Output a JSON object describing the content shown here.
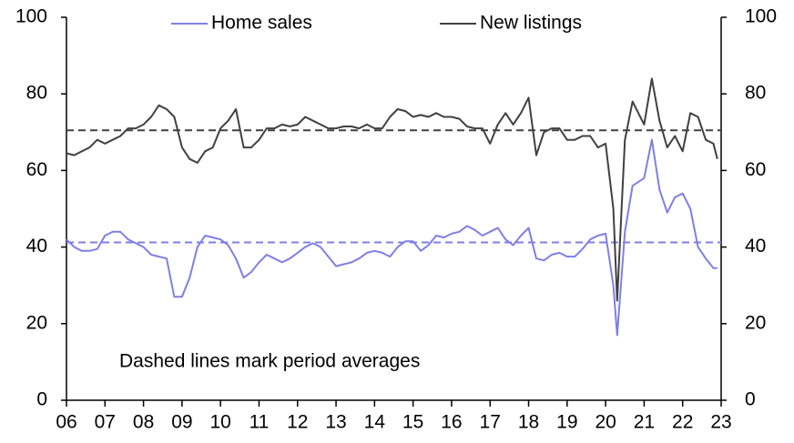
{
  "chart_data": {
    "type": "line",
    "legend": "top",
    "annotation": "Dashed lines mark period averages",
    "x": [
      2006.0,
      2006.2,
      2006.4,
      2006.6,
      2006.8,
      2007.0,
      2007.2,
      2007.4,
      2007.6,
      2007.8,
      2008.0,
      2008.2,
      2008.4,
      2008.6,
      2008.8,
      2009.0,
      2009.2,
      2009.4,
      2009.6,
      2009.8,
      2010.0,
      2010.2,
      2010.4,
      2010.6,
      2010.8,
      2011.0,
      2011.2,
      2011.4,
      2011.6,
      2011.8,
      2012.0,
      2012.2,
      2012.4,
      2012.6,
      2012.8,
      2013.0,
      2013.2,
      2013.4,
      2013.6,
      2013.8,
      2014.0,
      2014.2,
      2014.4,
      2014.6,
      2014.8,
      2015.0,
      2015.2,
      2015.4,
      2015.6,
      2015.8,
      2016.0,
      2016.2,
      2016.4,
      2016.6,
      2016.8,
      2017.0,
      2017.2,
      2017.4,
      2017.6,
      2017.8,
      2018.0,
      2018.2,
      2018.4,
      2018.6,
      2018.8,
      2019.0,
      2019.2,
      2019.4,
      2019.6,
      2019.8,
      2020.0,
      2020.2,
      2020.3,
      2020.5,
      2020.7,
      2021.0,
      2021.2,
      2021.4,
      2021.6,
      2021.8,
      2022.0,
      2022.2,
      2022.4,
      2022.6,
      2022.8,
      2022.9
    ],
    "series": [
      {
        "name": "Home sales",
        "color": "#7f7fe6",
        "average": 41.2,
        "values": [
          42,
          40,
          39,
          39,
          39.5,
          43,
          44,
          44,
          42,
          41,
          40,
          38,
          37.5,
          37,
          27,
          27,
          32,
          40,
          43,
          42.5,
          42,
          40.5,
          37,
          32,
          33.5,
          36,
          38,
          37,
          36,
          37,
          38.5,
          40,
          41,
          40,
          37.5,
          35,
          35.5,
          36,
          37,
          38.5,
          39,
          38.5,
          37.5,
          40,
          41.5,
          41.5,
          39,
          40.5,
          43,
          42.5,
          43.5,
          44,
          45.5,
          44.5,
          43,
          44,
          45,
          42,
          40.5,
          43,
          45,
          37,
          36.5,
          38,
          38.5,
          37.5,
          37.5,
          39.5,
          42,
          43,
          43.5,
          30,
          17,
          44,
          56,
          58,
          68,
          55,
          49,
          53,
          54,
          50,
          40,
          37,
          34.5,
          34.5
        ]
      },
      {
        "name": "New listings",
        "color": "#404040",
        "average": 70.5,
        "values": [
          64.5,
          64,
          65,
          66,
          68,
          67,
          68,
          69,
          71,
          71,
          72,
          74,
          77,
          76,
          74,
          66,
          63,
          62,
          65,
          66,
          71,
          73,
          76,
          66,
          66,
          68,
          71,
          71,
          72,
          71.5,
          72,
          74,
          73,
          72,
          71,
          71,
          71.5,
          71.5,
          71,
          72,
          71,
          71,
          74,
          76,
          75.5,
          74,
          74.5,
          74,
          75,
          74,
          74,
          73.5,
          71.5,
          71,
          71,
          67,
          72,
          75,
          72,
          75,
          79,
          64,
          70,
          71,
          71,
          68,
          68,
          69,
          69,
          66,
          67,
          50,
          26,
          68,
          78,
          72,
          84,
          73,
          66,
          69,
          65,
          75,
          74,
          68,
          67,
          63
        ]
      }
    ],
    "xlim": [
      2006,
      2023
    ],
    "xticks": [
      {
        "value": 2006,
        "label": "06"
      },
      {
        "value": 2007,
        "label": "07"
      },
      {
        "value": 2008,
        "label": "08"
      },
      {
        "value": 2009,
        "label": "09"
      },
      {
        "value": 2010,
        "label": "10"
      },
      {
        "value": 2011,
        "label": "11"
      },
      {
        "value": 2012,
        "label": "12"
      },
      {
        "value": 2013,
        "label": "13"
      },
      {
        "value": 2014,
        "label": "14"
      },
      {
        "value": 2015,
        "label": "15"
      },
      {
        "value": 2016,
        "label": "16"
      },
      {
        "value": 2017,
        "label": "17"
      },
      {
        "value": 2018,
        "label": "18"
      },
      {
        "value": 2019,
        "label": "19"
      },
      {
        "value": 2020,
        "label": "20"
      },
      {
        "value": 2021,
        "label": "21"
      },
      {
        "value": 2022,
        "label": "22"
      },
      {
        "value": 2023,
        "label": "23"
      }
    ],
    "ylim": [
      0,
      100
    ],
    "yticks": [
      0,
      20,
      40,
      60,
      80,
      100
    ],
    "y2lim": [
      0,
      100
    ],
    "y2ticks": [
      0,
      20,
      40,
      60,
      80,
      100
    ]
  }
}
